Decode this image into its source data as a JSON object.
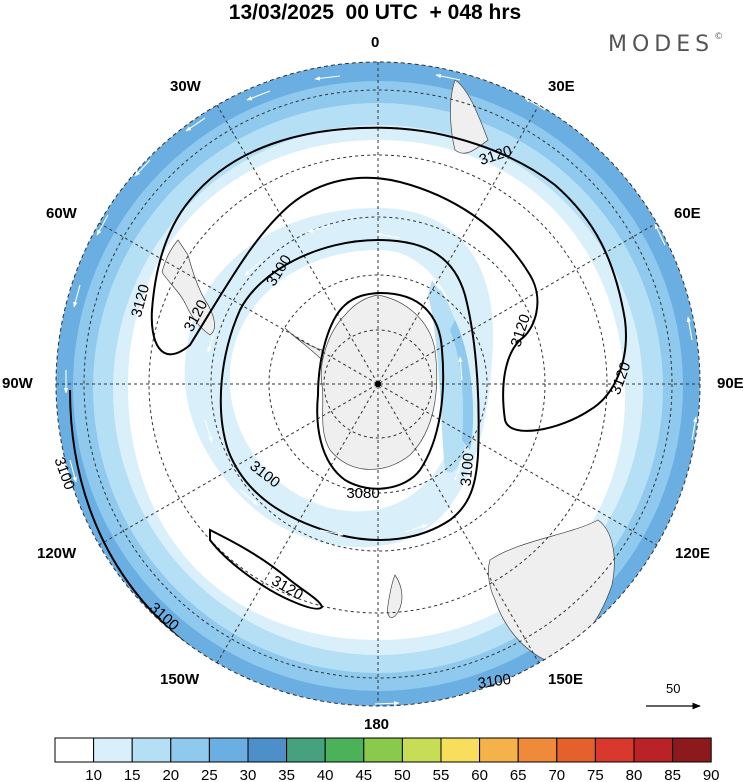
{
  "title": "13/03/2025  00 UTC  + 048 hrs",
  "brand": "MODES",
  "brand_mark": "©",
  "longitude_labels": {
    "lon_0": "0",
    "lon_30e": "30E",
    "lon_60e": "60E",
    "lon_90e": "90E",
    "lon_120e": "120E",
    "lon_150e": "150E",
    "lon_180": "180",
    "lon_150w": "150W",
    "lon_120w": "120W",
    "lon_90w": "90W",
    "lon_60w": "60W",
    "lon_30w": "30W"
  },
  "projection": "south polar stereographic",
  "contour_labels": [
    "3120",
    "3120",
    "3120",
    "3120",
    "3120",
    "3120",
    "3100",
    "3100",
    "3100",
    "3100",
    "3100",
    "3100",
    "3080"
  ],
  "vector_scale": {
    "value": "50",
    "icon": "arrow-right-icon"
  },
  "colorbar": {
    "colors": [
      "#ffffff",
      "#d9f0fb",
      "#b5dff5",
      "#8fc9ee",
      "#6aaee2",
      "#4d8fc8",
      "#45a17e",
      "#4bb25a",
      "#89c94c",
      "#c6dd55",
      "#f7df5d",
      "#f6b24a",
      "#ef8a3a",
      "#e5612c",
      "#d8392c",
      "#b92328",
      "#8c1a1c"
    ],
    "labels": [
      "10",
      "15",
      "20",
      "25",
      "30",
      "35",
      "40",
      "45",
      "50",
      "55",
      "60",
      "65",
      "70",
      "75",
      "80",
      "85",
      "90"
    ]
  }
}
